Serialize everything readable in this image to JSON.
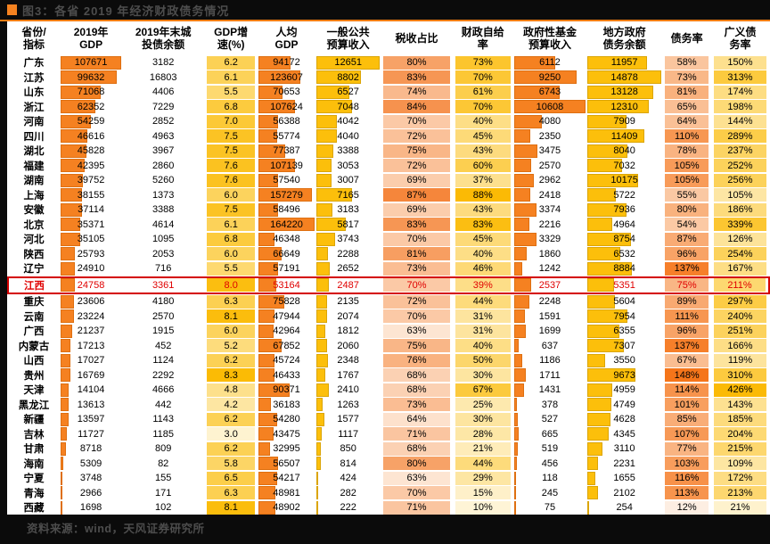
{
  "title": "图3：各省 2019 年经济财政债务情况",
  "footer": {
    "source": "资料来源：wind，天风证券研究所"
  },
  "colors": {
    "accent_orange": "#F58220",
    "divider_orange": "#F07C12",
    "highlight_red": "#E00000",
    "title_text": "#4D4D4D",
    "page_bg": "#0B0B0B",
    "panel_bg": "#FFFFFF"
  },
  "chart_data": {
    "type": "table",
    "title": "图3：各省 2019 年经济财政债务情况",
    "columns": [
      "省份/\n指标",
      "2019年\nGDP",
      "2019年末城\n投债余额",
      "GDP增\n速(%)",
      "人均\nGDP",
      "一般公共\n预算收入",
      "税收占比",
      "财政自给\n率",
      "政府性基金\n预算收入",
      "地方政府\n债务余额",
      "债务率",
      "广义债\n务率"
    ],
    "highlight_row": "江西",
    "rows": [
      [
        "广东",
        "107671",
        "3182",
        "6.2",
        "94172",
        "12651",
        "80%",
        "73%",
        "6112",
        "11957",
        "58%",
        "150%"
      ],
      [
        "江苏",
        "99632",
        "16803",
        "6.1",
        "123607",
        "8802",
        "83%",
        "70%",
        "9250",
        "14878",
        "73%",
        "313%"
      ],
      [
        "山东",
        "71068",
        "4406",
        "5.5",
        "70653",
        "6527",
        "74%",
        "61%",
        "6743",
        "13128",
        "81%",
        "174%"
      ],
      [
        "浙江",
        "62352",
        "7229",
        "6.8",
        "107624",
        "7048",
        "84%",
        "70%",
        "10608",
        "12310",
        "65%",
        "198%"
      ],
      [
        "河南",
        "54259",
        "2852",
        "7.0",
        "56388",
        "4042",
        "70%",
        "40%",
        "4080",
        "7909",
        "64%",
        "144%"
      ],
      [
        "四川",
        "46616",
        "4963",
        "7.5",
        "55774",
        "4040",
        "72%",
        "45%",
        "2350",
        "11409",
        "110%",
        "289%"
      ],
      [
        "湖北",
        "45828",
        "3967",
        "7.5",
        "77387",
        "3388",
        "75%",
        "43%",
        "3475",
        "8040",
        "78%",
        "237%"
      ],
      [
        "福建",
        "42395",
        "2860",
        "7.6",
        "107139",
        "3053",
        "72%",
        "60%",
        "2570",
        "7032",
        "105%",
        "252%"
      ],
      [
        "湖南",
        "39752",
        "5260",
        "7.6",
        "57540",
        "3007",
        "69%",
        "37%",
        "2962",
        "10175",
        "105%",
        "256%"
      ],
      [
        "上海",
        "38155",
        "1373",
        "6.0",
        "157279",
        "7165",
        "87%",
        "88%",
        "2418",
        "5722",
        "55%",
        "105%"
      ],
      [
        "安徽",
        "37114",
        "3388",
        "7.5",
        "58496",
        "3183",
        "69%",
        "43%",
        "3374",
        "7936",
        "80%",
        "186%"
      ],
      [
        "北京",
        "35371",
        "4614",
        "6.1",
        "164220",
        "5817",
        "83%",
        "83%",
        "2216",
        "4964",
        "54%",
        "339%"
      ],
      [
        "河北",
        "35105",
        "1095",
        "6.8",
        "46348",
        "3743",
        "70%",
        "45%",
        "3329",
        "8754",
        "87%",
        "126%"
      ],
      [
        "陕西",
        "25793",
        "2053",
        "6.0",
        "66649",
        "2288",
        "81%",
        "40%",
        "1860",
        "6532",
        "96%",
        "254%"
      ],
      [
        "辽宁",
        "24910",
        "716",
        "5.5",
        "57191",
        "2652",
        "73%",
        "46%",
        "1242",
        "8884",
        "137%",
        "167%"
      ],
      [
        "江西",
        "24758",
        "3361",
        "8.0",
        "53164",
        "2487",
        "70%",
        "39%",
        "2537",
        "5351",
        "75%",
        "211%"
      ],
      [
        "重庆",
        "23606",
        "4180",
        "6.3",
        "75828",
        "2135",
        "72%",
        "44%",
        "2248",
        "5604",
        "89%",
        "297%"
      ],
      [
        "云南",
        "23224",
        "2570",
        "8.1",
        "47944",
        "2074",
        "70%",
        "31%",
        "1591",
        "7954",
        "111%",
        "240%"
      ],
      [
        "广西",
        "21237",
        "1915",
        "6.0",
        "42964",
        "1812",
        "63%",
        "31%",
        "1699",
        "6355",
        "96%",
        "251%"
      ],
      [
        "内蒙古",
        "17213",
        "452",
        "5.2",
        "67852",
        "2060",
        "75%",
        "40%",
        "637",
        "7307",
        "137%",
        "166%"
      ],
      [
        "山西",
        "17027",
        "1124",
        "6.2",
        "45724",
        "2348",
        "76%",
        "50%",
        "1186",
        "3550",
        "67%",
        "119%"
      ],
      [
        "贵州",
        "16769",
        "2292",
        "8.3",
        "46433",
        "1767",
        "68%",
        "30%",
        "1711",
        "9673",
        "148%",
        "310%"
      ],
      [
        "天津",
        "14104",
        "4666",
        "4.8",
        "90371",
        "2410",
        "68%",
        "67%",
        "1431",
        "4959",
        "114%",
        "426%"
      ],
      [
        "黑龙江",
        "13613",
        "442",
        "4.2",
        "36183",
        "1263",
        "73%",
        "25%",
        "378",
        "4749",
        "101%",
        "143%"
      ],
      [
        "新疆",
        "13597",
        "1143",
        "6.2",
        "54280",
        "1577",
        "64%",
        "30%",
        "527",
        "4628",
        "85%",
        "185%"
      ],
      [
        "吉林",
        "11727",
        "1185",
        "3.0",
        "43475",
        "1117",
        "71%",
        "28%",
        "665",
        "4345",
        "107%",
        "204%"
      ],
      [
        "甘肃",
        "8718",
        "809",
        "6.2",
        "32995",
        "850",
        "68%",
        "21%",
        "519",
        "3110",
        "77%",
        "215%"
      ],
      [
        "海南",
        "5309",
        "82",
        "5.8",
        "56507",
        "814",
        "80%",
        "44%",
        "456",
        "2231",
        "103%",
        "109%"
      ],
      [
        "宁夏",
        "3748",
        "155",
        "6.5",
        "54217",
        "424",
        "63%",
        "29%",
        "118",
        "1655",
        "116%",
        "172%"
      ],
      [
        "青海",
        "2966",
        "171",
        "6.3",
        "48981",
        "282",
        "70%",
        "15%",
        "245",
        "2102",
        "113%",
        "213%"
      ],
      [
        "西藏",
        "1698",
        "102",
        "8.1",
        "48902",
        "222",
        "71%",
        "10%",
        "75",
        "254",
        "12%",
        "21%"
      ]
    ]
  },
  "format": {
    "column_widths_pct": [
      6.8,
      8.2,
      10.8,
      7.0,
      7.6,
      8.6,
      9.4,
      8.0,
      9.6,
      10.0,
      6.4,
      7.6
    ],
    "bar_columns": [
      {
        "col": 1,
        "max": 107671,
        "style": "orange"
      },
      {
        "col": 4,
        "max": 164220,
        "style": "orange"
      },
      {
        "col": 5,
        "max": 12651,
        "style": "gold"
      },
      {
        "col": 8,
        "max": 10608,
        "style": "orange"
      },
      {
        "col": 9,
        "max": 14878,
        "style": "gold"
      }
    ],
    "scale_columns": [
      {
        "col": 3,
        "min": 3,
        "max": 8.3,
        "from": "#FEF3D0",
        "to": "#FBBB05"
      },
      {
        "col": 6,
        "min": 63,
        "max": 87,
        "from": "#FDE5D2",
        "to": "#F5863B"
      },
      {
        "col": 7,
        "min": 10,
        "max": 88,
        "from": "#FEF4D6",
        "to": "#FBBA05"
      },
      {
        "col": 10,
        "min": 12,
        "max": 148,
        "from": "#FDEEE2",
        "to": "#F5751A"
      },
      {
        "col": 11,
        "min": 21,
        "max": 426,
        "from": "#FEF2CD",
        "to": "#FBBA06"
      }
    ],
    "bar_styles": {
      "orange": {
        "fill": "#F58121",
        "border": "#DE6F10"
      },
      "gold": {
        "fill": "#FCBF0B",
        "border": "#DBA505"
      }
    }
  }
}
